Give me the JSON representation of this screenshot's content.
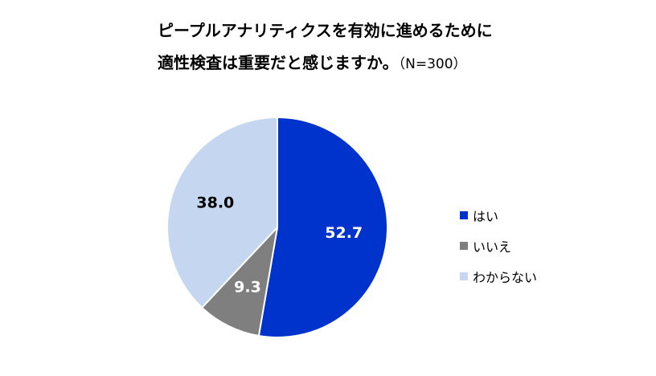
{
  "chart_data": {
    "type": "pie",
    "title": "ピープルアナリティクスを有効に進めるために",
    "subtitle": "適性検査は重要だと感じますか。",
    "sample_size_note": "（N=300）",
    "categories": [
      "はい",
      "いいえ",
      "わからない"
    ],
    "values": [
      52.7,
      9.3,
      38.0
    ],
    "value_labels": [
      "52.7",
      "9.3",
      "38.0"
    ],
    "colors": [
      "#0033CC",
      "#7F7F7F",
      "#C5D7F0"
    ],
    "label_colors": [
      "#FFFFFF",
      "#FFFFFF",
      "#000000"
    ],
    "start_angle_deg": 0,
    "direction": "clockwise",
    "legend_position": "right"
  }
}
